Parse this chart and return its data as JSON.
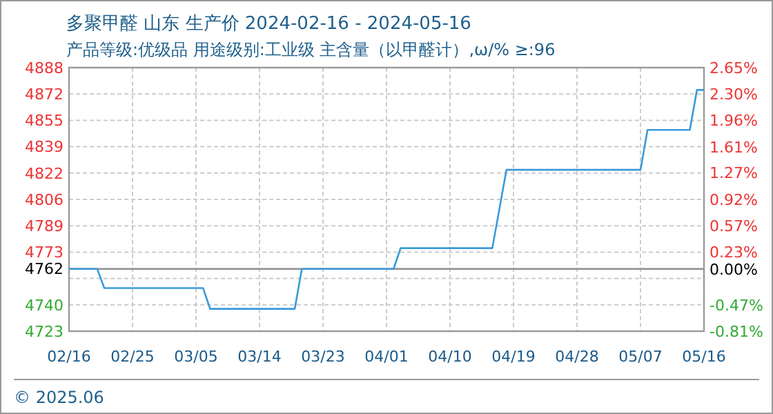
{
  "chart_data": {
    "type": "line",
    "title": "多聚甲醛 山东 生产价 2024-02-16 - 2024-05-16",
    "subtitle": "产品等级:优级品 用途级别:工业级 主含量（以甲醛计）,ω/%  ≥:96",
    "x": [
      "2024-02-16",
      "2024-02-20",
      "2024-02-21",
      "2024-03-06",
      "2024-03-07",
      "2024-03-19",
      "2024-03-20",
      "2024-04-02",
      "2024-04-03",
      "2024-04-16",
      "2024-04-18",
      "2024-05-07",
      "2024-05-08",
      "2024-05-14",
      "2024-05-15",
      "2024-05-16"
    ],
    "series": [
      {
        "color": "#3a9ad9",
        "values": [
          4762,
          4762,
          4750,
          4750,
          4737,
          4737,
          4762,
          4762,
          4775,
          4775,
          4824,
          4824,
          4849,
          4849,
          4874,
          4874
        ]
      }
    ],
    "xlim": [
      "2024-02-16",
      "2024-05-16"
    ],
    "xticks": [
      {
        "value": "2024-02-16",
        "label": "02/16"
      },
      {
        "value": "2024-02-25",
        "label": "02/25"
      },
      {
        "value": "2024-03-05",
        "label": "03/05"
      },
      {
        "value": "2024-03-14",
        "label": "03/14"
      },
      {
        "value": "2024-03-23",
        "label": "03/23"
      },
      {
        "value": "2024-04-01",
        "label": "04/01"
      },
      {
        "value": "2024-04-10",
        "label": "04/10"
      },
      {
        "value": "2024-04-19",
        "label": "04/19"
      },
      {
        "value": "2024-04-28",
        "label": "04/28"
      },
      {
        "value": "2024-05-07",
        "label": "05/07"
      },
      {
        "value": "2024-05-16",
        "label": "05/16"
      }
    ],
    "ylim": [
      4723,
      4888
    ],
    "yticks": [
      4888,
      {
        "value": 4871.5,
        "label": "4872"
      },
      4855,
      {
        "value": 4838.5,
        "label": "4839"
      },
      4822,
      {
        "value": 4805.5,
        "label": "4806"
      },
      4789,
      {
        "value": 4772.5,
        "label": "4773"
      },
      4762,
      {
        "value": 4756,
        "label": null
      },
      {
        "value": 4739.5,
        "label": "4740"
      },
      4723
    ],
    "y2lim": [
      -0.81,
      2.65
    ],
    "y2ticks": [
      {
        "value": 2.65,
        "label": "2.65%"
      },
      {
        "value": 2.3,
        "label": "2.30%"
      },
      {
        "value": 1.96,
        "label": "1.96%"
      },
      {
        "value": 1.61,
        "label": "1.61%"
      },
      {
        "value": 1.27,
        "label": "1.27%"
      },
      {
        "value": 0.92,
        "label": "0.92%"
      },
      {
        "value": 0.57,
        "label": "0.57%"
      },
      {
        "value": 0.23,
        "label": "0.23%"
      },
      {
        "value": 0,
        "label": "0.00%"
      },
      {
        "value": -0.47,
        "label": "-0.47%"
      },
      {
        "value": -0.81,
        "label": "-0.81%"
      }
    ],
    "ref_lines": [
      {
        "axis": "y",
        "value": 4762,
        "color": "#909090"
      }
    ],
    "grid": true,
    "annotations": [
      "© 2025.06"
    ]
  }
}
